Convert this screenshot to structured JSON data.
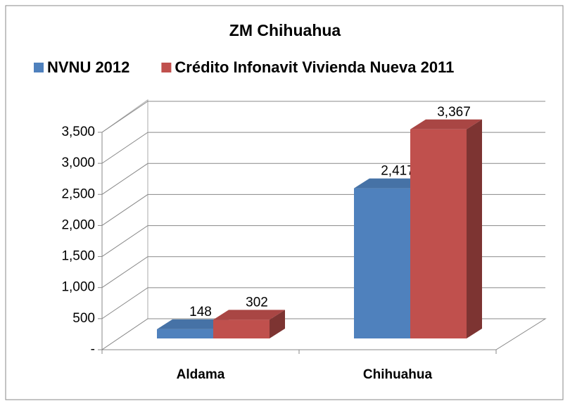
{
  "chart_data": {
    "type": "bar3d",
    "title": "ZM Chihuahua",
    "categories": [
      "Aldama",
      "Chihuahua"
    ],
    "series": [
      {
        "name": "NVNU 2012",
        "color": "#4f81bd",
        "values": [
          148,
          2417
        ],
        "value_labels": [
          "148",
          "2,417"
        ]
      },
      {
        "name": "Crédito Infonavit Vivienda Nueva 2011",
        "color": "#c0504d",
        "values": [
          302,
          3367
        ],
        "value_labels": [
          "302",
          "3,367"
        ]
      }
    ],
    "ylim": [
      0,
      3500
    ],
    "yticks": [
      {
        "value": 0,
        "label": "-"
      },
      500,
      {
        "value": 1000,
        "label": "1,000"
      },
      {
        "value": 1500,
        "label": "1,500"
      },
      {
        "value": 2000,
        "label": "2,000"
      },
      {
        "value": 2500,
        "label": "2,500"
      },
      {
        "value": 3000,
        "label": "3,000"
      },
      {
        "value": 3500,
        "label": "3,500"
      }
    ],
    "grid": true,
    "legend": "top"
  }
}
